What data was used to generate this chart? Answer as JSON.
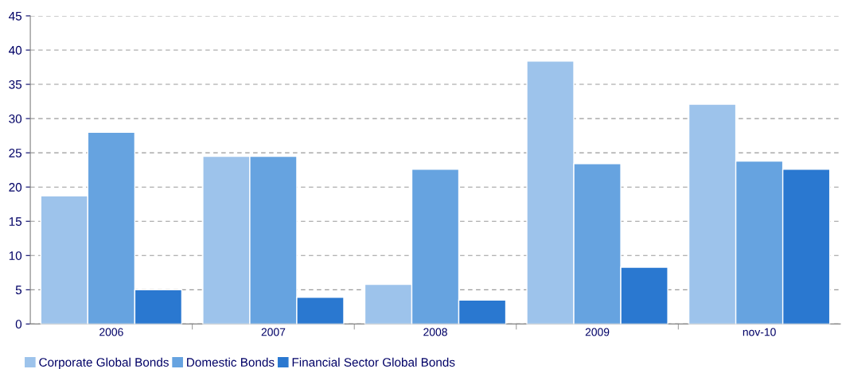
{
  "chart_data": {
    "type": "bar",
    "categories": [
      "2006",
      "2007",
      "2008",
      "2009",
      "nov-10"
    ],
    "series": [
      {
        "name": "Corporate Global Bonds",
        "color": "#9dc3eb",
        "values": [
          18.7,
          24.5,
          5.8,
          38.4,
          32.1
        ]
      },
      {
        "name": "Domestic Bonds",
        "color": "#66a3e0",
        "values": [
          28.0,
          24.5,
          22.6,
          23.4,
          23.8
        ]
      },
      {
        "name": "Financial Sector Global Bonds",
        "color": "#2a78d0",
        "values": [
          5.0,
          3.9,
          3.5,
          8.3,
          22.6
        ]
      }
    ],
    "ylim": [
      0,
      45
    ],
    "yticks": [
      0,
      5,
      10,
      15,
      20,
      25,
      30,
      35,
      40,
      45
    ],
    "grid": "y",
    "legend": "bottom"
  }
}
